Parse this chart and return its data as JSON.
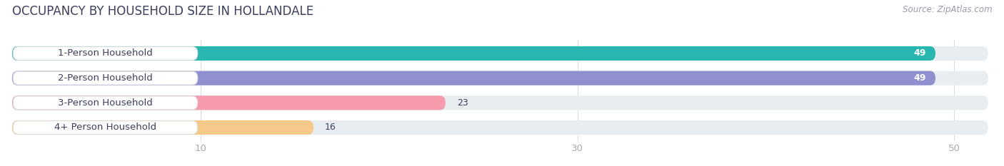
{
  "title": "OCCUPANCY BY HOUSEHOLD SIZE IN HOLLANDALE",
  "source": "Source: ZipAtlas.com",
  "categories": [
    "1-Person Household",
    "2-Person Household",
    "3-Person Household",
    "4+ Person Household"
  ],
  "values": [
    49,
    49,
    23,
    16
  ],
  "bar_colors": [
    "#29b5b0",
    "#9090d0",
    "#f59bac",
    "#f5c98a"
  ],
  "bg_color": "#ffffff",
  "bar_bg_color": "#e8edf2",
  "xlim_max": 52,
  "xticks": [
    10,
    30,
    50
  ],
  "title_fontsize": 12,
  "label_fontsize": 9.5,
  "value_fontsize": 9,
  "source_fontsize": 8.5,
  "title_color": "#3a3f5c",
  "label_color": "#3a3f5c",
  "source_color": "#999aaa",
  "tick_color": "#aaaaaa"
}
